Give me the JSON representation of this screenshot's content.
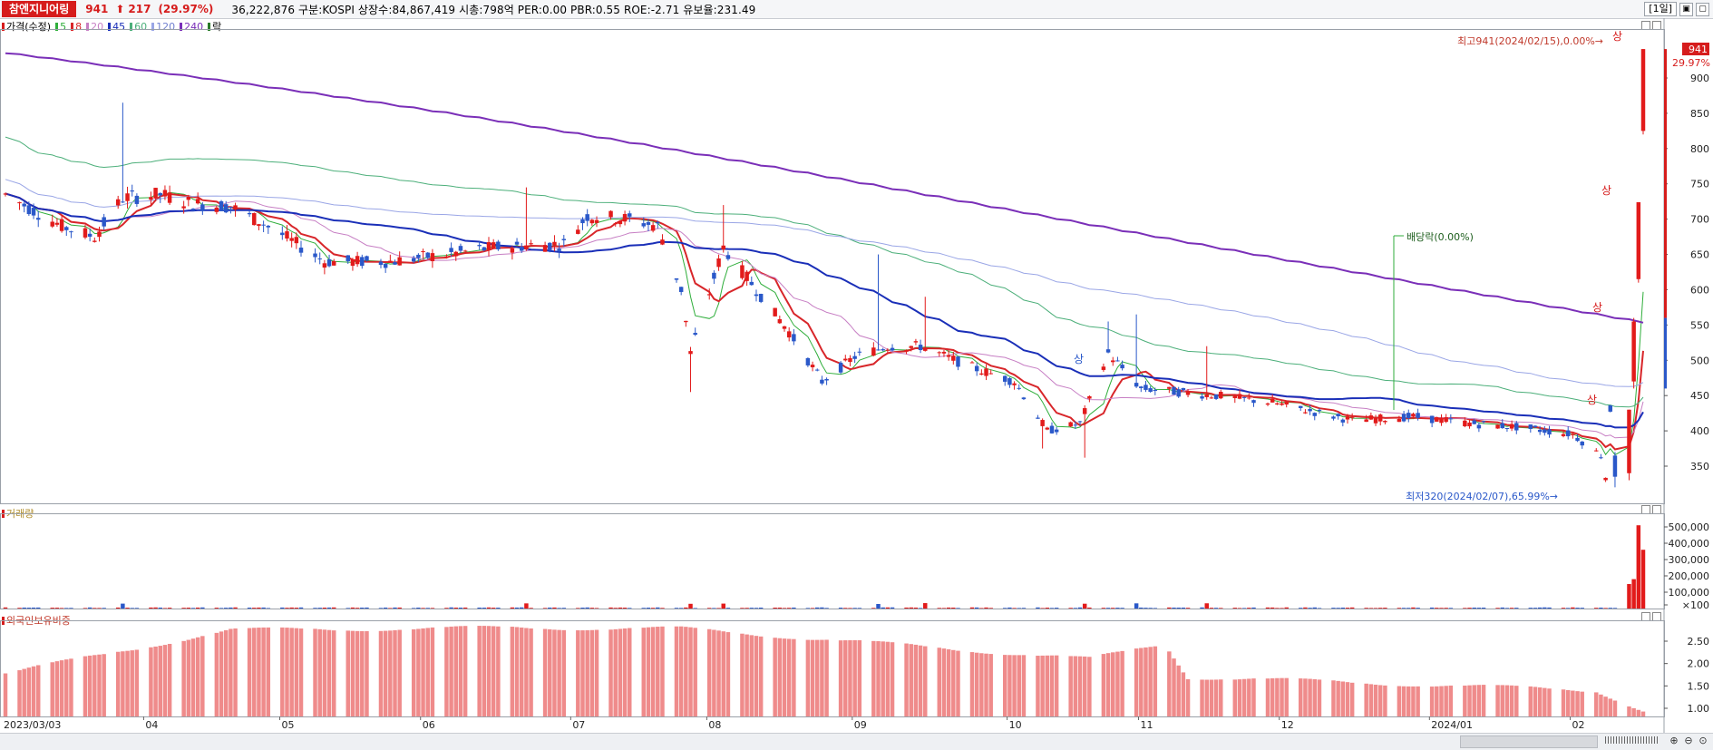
{
  "header": {
    "stock_name": "참엔지니어링",
    "price": "941",
    "arrow": "⬆",
    "change": "217",
    "change_pct": "(29.97%)",
    "info": "36,222,876  구분:KOSPI 상장수:84,867,419 시총:798억 PER:0.00 PBR:0.55 ROE:-2.71 유보율:231.49",
    "period": "1일",
    "window_min": "▣",
    "window_close": "▢"
  },
  "legend": {
    "price_label": "가격(수정)",
    "ma": [
      {
        "label": "5",
        "color": "#2fae3b"
      },
      {
        "label": "8",
        "color": "#d8262a"
      },
      {
        "label": "20",
        "color": "#c77fc4"
      },
      {
        "label": "45",
        "color": "#1a2fb8"
      },
      {
        "label": "60",
        "color": "#4caf7a"
      },
      {
        "label": "120",
        "color": "#9aa6e6"
      },
      {
        "label": "240",
        "color": "#7a2fb8"
      }
    ],
    "rak": "락"
  },
  "colors": {
    "up": "#e21b1b",
    "down": "#2a58c9",
    "grid": "#e8e8e8"
  },
  "annotations": {
    "high": "최고941(2024/02/15),0.00%→",
    "low": "최저320(2024/02/07),65.99%→",
    "dividend": "배당락(0.00%)",
    "sang": "상",
    "current_price": "941",
    "current_pct": "29.97%"
  },
  "panels": {
    "volume": "거래량",
    "foreign": "외국인보유비중"
  },
  "chart_data": [
    {
      "type": "candlestick",
      "title": "",
      "x_ticks": [
        "2023/03/03",
        "04",
        "05",
        "06",
        "07",
        "08",
        "09",
        "10",
        "11",
        "12",
        "2024/01",
        "02"
      ],
      "y_ticks": [
        "900",
        "850",
        "800",
        "750",
        "700",
        "650",
        "600",
        "550",
        "500",
        "450",
        "400",
        "350"
      ],
      "ylim": [
        320,
        960
      ],
      "key_points": [
        {
          "date": "2023/03/03",
          "close": 735
        },
        {
          "date": "2023/03/28",
          "high": 865,
          "close": 730
        },
        {
          "date": "2023/05/10",
          "close": 640
        },
        {
          "date": "2023/07/03",
          "close": 705
        },
        {
          "date": "2023/07/27",
          "low": 455,
          "close": 510
        },
        {
          "date": "2023/08/03",
          "high": 720,
          "close": 660
        },
        {
          "date": "2023/08/24",
          "close": 470
        },
        {
          "date": "2023/09/05",
          "high": 650
        },
        {
          "date": "2023/10/10",
          "low": 375
        },
        {
          "date": "2023/10/24",
          "high": 555,
          "close": 510
        },
        {
          "date": "2023/11/14",
          "high": 520,
          "close": 450
        },
        {
          "date": "2023/12/15",
          "close": 415
        },
        {
          "date": "2024/01/20",
          "close": 405
        },
        {
          "date": "2024/02/07",
          "low": 320
        },
        {
          "date": "2024/02/13",
          "close": 560
        },
        {
          "date": "2024/02/14",
          "close": 724
        },
        {
          "date": "2024/02/15",
          "high": 941,
          "close": 941
        }
      ]
    },
    {
      "type": "bar",
      "title": "거래량",
      "y_ticks": [
        "500,000",
        "400,000",
        "300,000",
        "200,000",
        "100,000",
        "×100"
      ],
      "ylim": [
        0,
        550000
      ],
      "last_values": [
        150000,
        180000,
        510000,
        360000
      ]
    },
    {
      "type": "bar",
      "title": "외국인보유비중",
      "y_ticks": [
        "2.50",
        "2.00",
        "1.50",
        "1.00"
      ],
      "ylim": [
        0.9,
        2.9
      ],
      "key_points": [
        {
          "date": "2023/03/03",
          "value": 1.78
        },
        {
          "date": "2023/04/20",
          "value": 2.75
        },
        {
          "date": "2023/06/20",
          "value": 2.8
        },
        {
          "date": "2023/07/25",
          "value": 2.78
        },
        {
          "date": "2023/10/20",
          "value": 2.1
        },
        {
          "date": "2023/11/05",
          "value": 2.45
        },
        {
          "date": "2023/11/10",
          "value": 1.7
        },
        {
          "date": "2024/02/05",
          "value": 1.4
        },
        {
          "date": "2024/02/15",
          "value": 0.95
        }
      ]
    }
  ]
}
